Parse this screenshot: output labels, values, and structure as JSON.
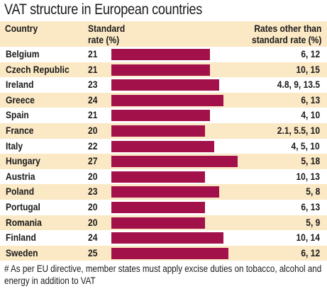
{
  "chart_data": {
    "type": "bar",
    "title": "VAT structure in European countries",
    "columns": {
      "country": "Country",
      "standard_rate": "Standard rate (%)",
      "other_rates": "Rates other than standard rate (%)"
    },
    "categories": [
      "Belgium",
      "Czech Republic",
      "Ireland",
      "Greece",
      "Spain",
      "France",
      "Italy",
      "Hungary",
      "Austria",
      "Poland",
      "Portugal",
      "Romania",
      "Finland",
      "Sweden"
    ],
    "values": [
      21,
      21,
      23,
      24,
      21,
      20,
      22,
      27,
      20,
      23,
      20,
      20,
      24,
      25
    ],
    "other_rates": [
      "6, 12",
      "10, 15",
      "4.8, 9, 13.5",
      "6, 13",
      "4, 10",
      "2.1, 5.5, 10",
      "4, 5, 10",
      "5, 18",
      "10, 13",
      "5, 8",
      "6, 13",
      "5, 9",
      "10, 14",
      "6, 12"
    ],
    "bar_color": "#a3114a",
    "stripe_color": "#fbe8c4",
    "footnote": "# As per EU directive, member states must apply excise duties on tobacco, alcohol and energy in addition to VAT"
  }
}
